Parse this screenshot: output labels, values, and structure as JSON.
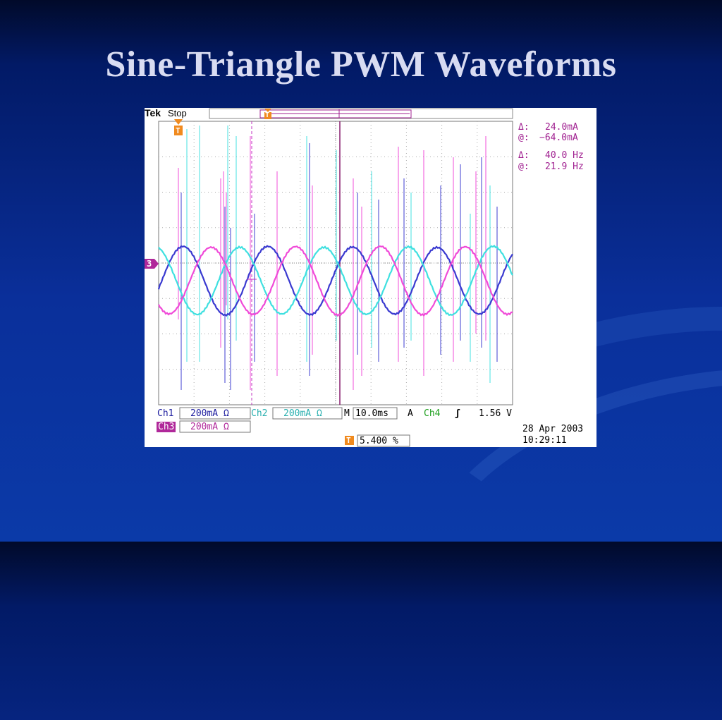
{
  "slide": {
    "title": "Sine-Triangle PWM Waveforms"
  },
  "scope": {
    "brand": "Tek",
    "acq_state": "Stop",
    "trigger_marker": "T",
    "ch3_ground_marker": "3",
    "cursor_readout": {
      "delta_current_label": "Δ:",
      "delta_current_value": "24.0mA",
      "at_current_label": "@:",
      "at_current_value": "−64.0mA",
      "delta_freq_label": "Δ:",
      "delta_freq_value": "40.0 Hz",
      "at_freq_label": "@:",
      "at_freq_value": "21.9 Hz"
    },
    "channels": {
      "ch1_label": "Ch1",
      "ch1_scale": "200mA Ω",
      "ch2_label": "Ch2",
      "ch2_scale": "200mA Ω",
      "ch3_label": "Ch3",
      "ch3_scale": "200mA Ω"
    },
    "timebase_label": "M",
    "timebase_value": "10.0ms",
    "trigger_source_label": "A",
    "trigger_channel": "Ch4",
    "trigger_slope_symbol": "ʃ",
    "trigger_level": "1.56 V",
    "trigger_position": "5.400 %",
    "date": "28 Apr 2003",
    "time": "10:29:11",
    "colors": {
      "ch1": "#3a3ad0",
      "ch2": "#3fe0e0",
      "ch3": "#f04ad8",
      "ch3_badge": "#b0289a",
      "trigger": "#f08a1e",
      "grid": "#999999"
    }
  }
}
